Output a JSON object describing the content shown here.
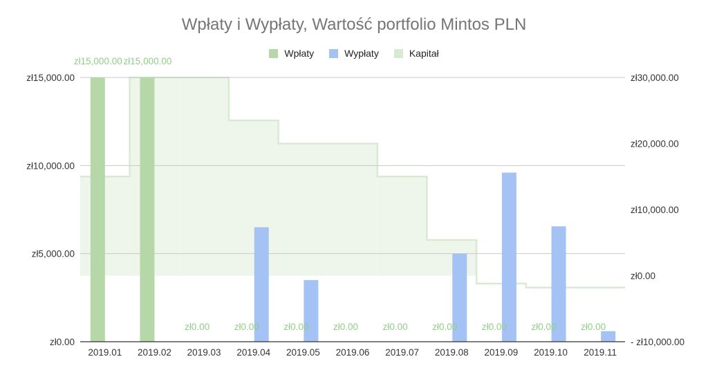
{
  "chart_data": {
    "type": "bar",
    "title": "Wpłaty i Wypłaty, Wartość portfolio  Mintos PLN",
    "categories": [
      "2019.01",
      "2019.02",
      "2019.03",
      "2019.04",
      "2019.05",
      "2019.06",
      "2019.07",
      "2019.08",
      "2019.09",
      "2019.10",
      "2019.11"
    ],
    "series": [
      {
        "name": "Wpłaty",
        "type": "bar",
        "axis": "left",
        "color": "#b6d7a8",
        "values": [
          15000,
          15000,
          0,
          0,
          0,
          0,
          0,
          0,
          0,
          0,
          0
        ],
        "data_labels": [
          "zł15,000.00",
          "zł15,000.00",
          "zł0.00",
          "zł0.00",
          "zł0.00",
          "zł0.00",
          "zł0.00",
          "zł0.00",
          "zł0.00",
          "zł0.00",
          "zł0.00"
        ]
      },
      {
        "name": "Wypłaty",
        "type": "bar",
        "axis": "left",
        "color": "#a4c2f4",
        "values": [
          0,
          0,
          0,
          6500,
          3500,
          0,
          0,
          5000,
          9600,
          6550,
          600
        ]
      },
      {
        "name": "Kapitał",
        "type": "stepped-area",
        "axis": "right",
        "color": "#d9ead3",
        "values": [
          15000,
          30000,
          30000,
          23500,
          20000,
          20000,
          15000,
          5400,
          -1200,
          -1800,
          -1800
        ]
      }
    ],
    "left_axis": {
      "range": [
        0,
        15000
      ],
      "ticks": [
        0,
        5000,
        10000,
        15000
      ],
      "tick_labels": [
        "zł0.00",
        "zł5,000.00",
        "zł10,000.00",
        "zł15,000.00"
      ]
    },
    "right_axis": {
      "range": [
        -10000,
        30000
      ],
      "ticks": [
        -10000,
        0,
        10000,
        20000,
        30000
      ],
      "tick_labels": [
        "- zł10,000.00",
        "zł0.00",
        "zł10,000.00",
        "zł20,000.00",
        "zł30,000.00"
      ]
    },
    "grid": true,
    "legend_position": "top"
  }
}
